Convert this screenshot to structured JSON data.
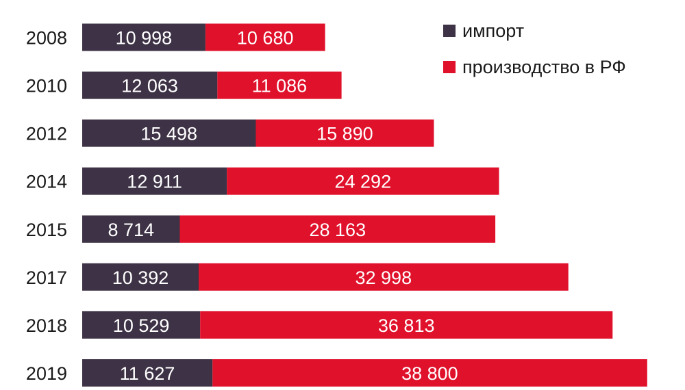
{
  "chart_data": {
    "type": "bar",
    "orientation": "horizontal",
    "stacked": true,
    "categories": [
      "2008",
      "2010",
      "2012",
      "2014",
      "2015",
      "2017",
      "2018",
      "2019"
    ],
    "series": [
      {
        "name": "импорт",
        "color": "#3e3346",
        "values": [
          10998,
          12063,
          15498,
          12911,
          8714,
          10392,
          10529,
          11627
        ],
        "labels": [
          "10 998",
          "12 063",
          "15 498",
          "12 911",
          "8 714",
          "10 392",
          "10 529",
          "11 627"
        ]
      },
      {
        "name": "производство в РФ",
        "color": "#e0112b",
        "values": [
          10680,
          11086,
          15890,
          24292,
          28163,
          32998,
          36813,
          38800
        ],
        "labels": [
          "10 680",
          "11 086",
          "15 890",
          "24 292",
          "28 163",
          "32 998",
          "36 813",
          "38 800"
        ]
      }
    ],
    "title": "",
    "xlabel": "",
    "ylabel": "",
    "grid": false,
    "legend_position": "top-right"
  }
}
